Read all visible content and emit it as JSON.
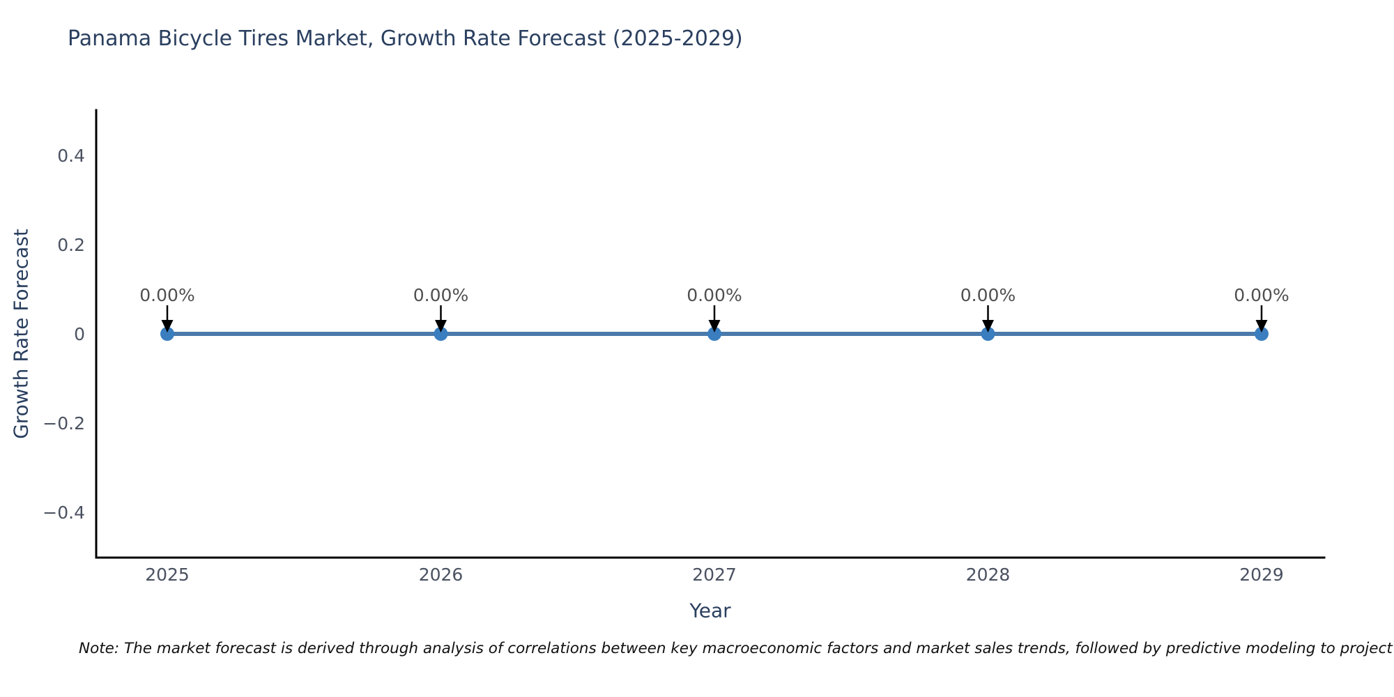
{
  "page": {
    "background": "#ffffff",
    "note": "Note: The market forecast is derived through analysis of correlations between key macroeconomic factors and market sales trends, followed by predictive modeling to project future sa"
  },
  "chart_data": {
    "type": "line",
    "title": "Panama Bicycle Tires Market, Growth Rate Forecast (2025-2029)",
    "xlabel": "Year",
    "ylabel": "Growth Rate Forecast",
    "categories": [
      "2025",
      "2026",
      "2027",
      "2028",
      "2029"
    ],
    "values": [
      0,
      0,
      0,
      0,
      0
    ],
    "point_labels": [
      "0.00%",
      "0.00%",
      "0.00%",
      "0.00%",
      "0.00%"
    ],
    "yticks": [
      0.4,
      0.2,
      0,
      -0.2,
      -0.4
    ],
    "ylim": [
      -0.5,
      0.5
    ],
    "grid": false,
    "legend": "none",
    "colors": {
      "line": "#4a7aab",
      "marker": "#3a7ebf",
      "arrow": "#000000",
      "spine": "#000000",
      "title": "#2a3f5f",
      "axis_label": "#2a3f5f",
      "tick_label": "#4a5160",
      "annotation": "#4f4f4f"
    }
  }
}
